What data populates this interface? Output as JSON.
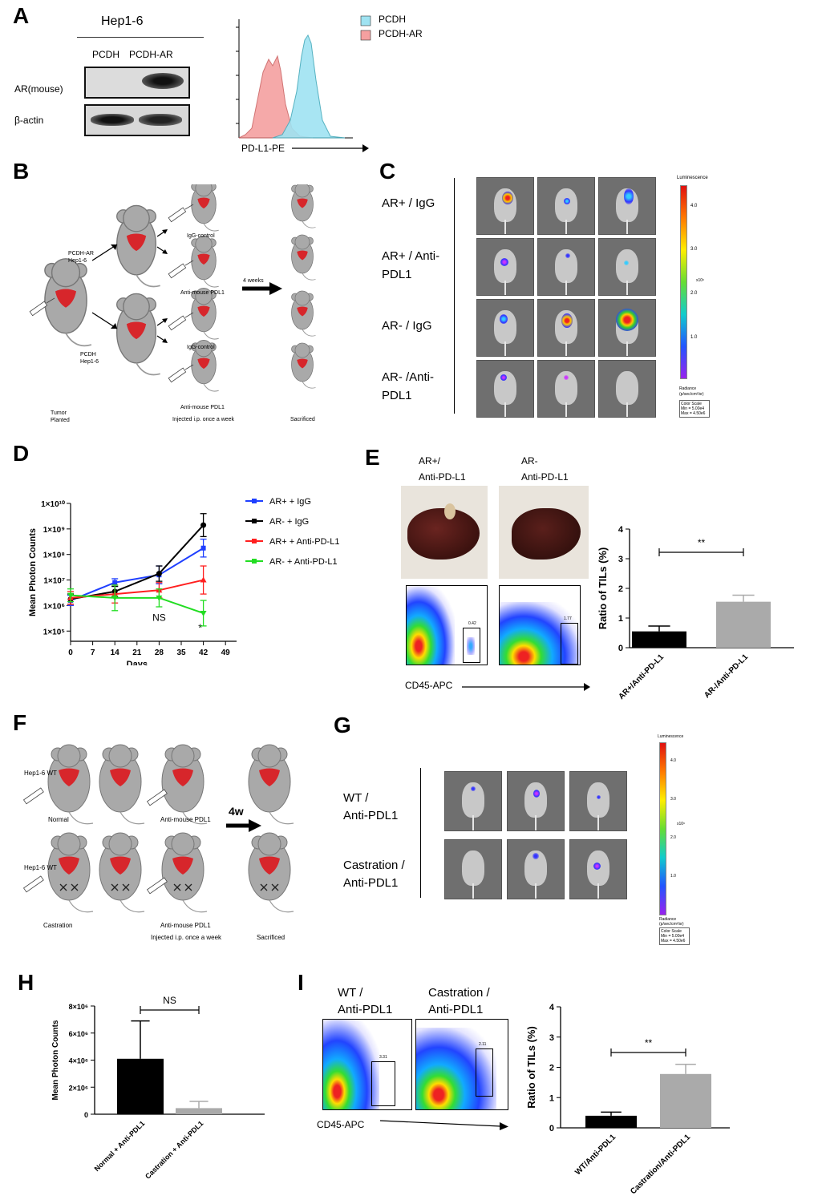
{
  "panels": {
    "a": "A",
    "b": "B",
    "c": "C",
    "d": "D",
    "e": "E",
    "f": "F",
    "g": "G",
    "h": "H",
    "i": "I"
  },
  "panelA": {
    "cell_line": "Hep1-6",
    "lanes": [
      "PCDH",
      "PCDH-AR"
    ],
    "row_labels": [
      "AR(mouse)",
      "β-actin"
    ],
    "legend": [
      "PCDH",
      "PCDH-AR"
    ],
    "xlabel": "PD-L1-PE",
    "colors": {
      "pcdh": "#9fe3f2",
      "pcdh_ar": "#f5a0a0"
    }
  },
  "panelB": {
    "label_ar": "PCDH-AR\nHep1-6",
    "label_ar_l1": "PCDH-AR",
    "label_ar_l2": "Hep1-6",
    "label_pcdh_l1": "PCDH",
    "label_pcdh_l2": "Hep1-6",
    "treat1": "IgG-control",
    "treat2": "Anti-mouse PDL1",
    "treat3": "IgG-control",
    "treat4": "Anti-mouse PDL1",
    "weeks": "4 weeks",
    "bottom_l1": "Tumor",
    "bottom_l2": "Planted",
    "bottom_mid": "Injected i.p. once a week",
    "bottom_right": "Sacrificed"
  },
  "panelC": {
    "rows": [
      "AR+ / IgG",
      "AR+ / Anti-",
      "PDL1",
      "AR- / IgG",
      "AR- /Anti-",
      "PDL1"
    ],
    "scale_top": "Luminescence",
    "ticks": [
      "4.0",
      "3.0",
      "2.0",
      "1.0"
    ],
    "unit": "x10⁶",
    "radiance_l1": "Radiance",
    "radiance_l2": "(p/sec/cm²/sr)",
    "cs_l1": "Color Scale",
    "cs_l2": "Min = 5.00e4",
    "cs_l3": "Max = 4.50e6"
  },
  "panelE": {
    "col1_l1": "AR+/",
    "col1_l2": "Anti-PD-L1",
    "col2_l1": "AR-",
    "col2_l2": "Anti-PD-L1",
    "gate1": "0.42",
    "gate2": "1.77",
    "flow_x": "CD45-APC",
    "sig": "**"
  },
  "panelF": {
    "hep_wt_1": "Hep1-6 WT",
    "hep_wt_2": "Hep1-6 WT",
    "normal": "Normal",
    "anti1": "Anti-mouse PDL1",
    "castration": "Castration",
    "anti2": "Anti-mouse PDL1",
    "injected": "Injected i.p. once a week",
    "sacrificed": "Sacrificed",
    "weeks": "4w"
  },
  "panelG": {
    "row1_l1": "WT /",
    "row1_l2": "Anti-PDL1",
    "row2_l1": "Castration /",
    "row2_l2": "Anti-PDL1"
  },
  "panelI": {
    "col1_l1": "WT /",
    "col1_l2": "Anti-PDL1",
    "col2_l1": "Castration /",
    "col2_l2": "Anti-PDL1",
    "gate1": "3.31",
    "gate2": "2.11",
    "flow_x": "CD45-APC"
  },
  "chart_data": [
    {
      "id": "D",
      "type": "line",
      "xlabel": "Days",
      "ylabel": "Mean Photon Counts",
      "x": [
        0,
        14,
        28,
        42
      ],
      "xticks": [
        "0",
        "7",
        "14",
        "21",
        "28",
        "35",
        "42",
        "49"
      ],
      "yticks": [
        "1×10⁵",
        "1×10⁶",
        "1×10⁷",
        "1×10⁸",
        "1×10⁹",
        "1×10¹⁰"
      ],
      "ylim_log10": [
        4.6,
        10
      ],
      "annotations": [
        "NS",
        "*"
      ],
      "series": [
        {
          "name": "AR+ + IgG",
          "color": "#1f3fff",
          "log10": [
            6.2,
            6.9,
            7.2,
            8.25
          ],
          "err": [
            0.2,
            0.15,
            0.35,
            0.35
          ]
        },
        {
          "name": "AR- + IgG",
          "color": "#000000",
          "log10": [
            6.25,
            6.55,
            7.25,
            9.15
          ],
          "err": [
            0.2,
            0.2,
            0.3,
            0.45
          ]
        },
        {
          "name": "AR+ + Anti-PD-L1",
          "color": "#ff1f1f",
          "log10": [
            6.3,
            6.45,
            6.6,
            7.0
          ],
          "err": [
            0.25,
            0.35,
            0.3,
            0.55
          ]
        },
        {
          "name": "AR- + Anti-PD-L1",
          "color": "#22dd22",
          "log10": [
            6.4,
            6.3,
            6.3,
            5.7
          ],
          "err": [
            0.25,
            0.5,
            0.35,
            0.5
          ]
        }
      ]
    },
    {
      "id": "E",
      "type": "bar",
      "ylabel": "Ratio of TILs (%)",
      "categories": [
        "AR+/Anti-PD-L1",
        "AR-/Anti-PD-L1"
      ],
      "values": [
        0.55,
        1.55
      ],
      "errors": [
        0.18,
        0.22
      ],
      "ylim": [
        0,
        4
      ],
      "yticks": [
        "0",
        "1",
        "2",
        "3",
        "4"
      ],
      "colors": [
        "#000000",
        "#aaaaaa"
      ],
      "sig": "**"
    },
    {
      "id": "H",
      "type": "bar",
      "ylabel": "Mean Photon Counts",
      "categories": [
        "Normal + Anti-PDL1",
        "Castration + Anti-PDL1"
      ],
      "values": [
        4100000,
        450000
      ],
      "errors": [
        2800000,
        500000
      ],
      "ylim": [
        0,
        8000000
      ],
      "yticks": [
        "0",
        "2×10⁶",
        "4×10⁶",
        "6×10⁶",
        "8×10⁶"
      ],
      "colors": [
        "#000000",
        "#aaaaaa"
      ],
      "sig": "NS"
    },
    {
      "id": "I",
      "type": "bar",
      "ylabel": "Ratio of TILs (%)",
      "categories": [
        "WT/Anti-PDL1",
        "Castration/Anti-PDL1"
      ],
      "values": [
        0.4,
        1.78
      ],
      "errors": [
        0.12,
        0.32
      ],
      "ylim": [
        0,
        4
      ],
      "yticks": [
        "0",
        "1",
        "2",
        "3",
        "4"
      ],
      "colors": [
        "#000000",
        "#aaaaaa"
      ],
      "sig": "**"
    }
  ]
}
